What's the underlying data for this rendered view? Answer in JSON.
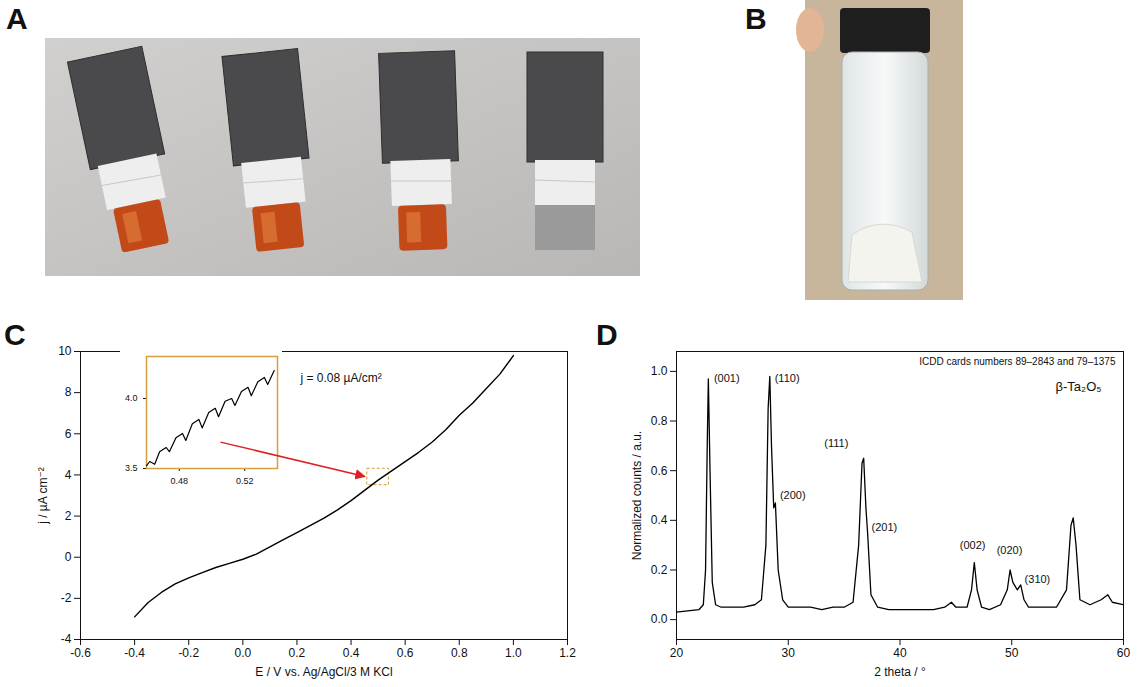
{
  "photo_panels": [
    "A",
    "B"
  ],
  "chart_data": [
    {
      "panel": "C",
      "type": "line",
      "x_label": "E / V vs. Ag/AgCl/3 M KCl",
      "y_label": "j / µA cm⁻²",
      "annotations": [
        "j = 0.08 µA/cm²"
      ],
      "color": "#000000",
      "grid": false,
      "x": [
        -0.4,
        -0.35,
        -0.3,
        -0.25,
        -0.2,
        -0.15,
        -0.1,
        -0.05,
        0,
        0.05,
        0.1,
        0.15,
        0.2,
        0.25,
        0.3,
        0.35,
        0.4,
        0.45,
        0.5,
        0.55,
        0.6,
        0.65,
        0.7,
        0.75,
        0.8,
        0.85,
        0.9,
        0.95,
        1.0
      ],
      "values": [
        -2.9,
        -2.2,
        -1.7,
        -1.3,
        -1.0,
        -0.75,
        -0.5,
        -0.3,
        -0.1,
        0.15,
        0.5,
        0.85,
        1.2,
        1.55,
        1.9,
        2.3,
        2.75,
        3.25,
        3.75,
        4.2,
        4.65,
        5.1,
        5.6,
        6.2,
        6.9,
        7.5,
        8.2,
        8.9,
        9.8
      ],
      "xlim": [
        -0.6,
        1.2
      ],
      "xticks": [
        -0.6,
        -0.4,
        -0.2,
        {
          "value": 0,
          "label": "0.0"
        },
        0.2,
        0.4,
        0.6,
        0.8,
        {
          "value": 1,
          "label": "1.0"
        },
        1.2
      ],
      "ylim": [
        -4,
        10
      ],
      "yticks": [
        -4,
        -2,
        0,
        2,
        4,
        6,
        8,
        10
      ],
      "inset": {
        "type": "line",
        "color": "#000000",
        "x": [
          0.46,
          0.462,
          0.465,
          0.468,
          0.472,
          0.474,
          0.478,
          0.482,
          0.484,
          0.488,
          0.492,
          0.494,
          0.498,
          0.502,
          0.504,
          0.508,
          0.512,
          0.514,
          0.518,
          0.522,
          0.524,
          0.528,
          0.532,
          0.534,
          0.538
        ],
        "values": [
          3.52,
          3.55,
          3.53,
          3.62,
          3.65,
          3.62,
          3.72,
          3.75,
          3.7,
          3.82,
          3.85,
          3.79,
          3.9,
          3.93,
          3.87,
          3.98,
          4.0,
          3.95,
          4.05,
          4.08,
          4.02,
          4.12,
          4.15,
          4.1,
          4.2
        ],
        "xlim": [
          0.46,
          0.54
        ],
        "xticks": [
          0.48,
          0.52
        ],
        "ylim": [
          3.5,
          4.3
        ],
        "yticks": [
          3.5,
          {
            "value": 4,
            "label": "4.0"
          }
        ]
      }
    },
    {
      "panel": "D",
      "type": "line",
      "x_label": "2 theta / °",
      "y_label": "Normalized counts / a.u.",
      "annotations": [
        "ICDD cards numbers 89–2843 and 79–1375",
        "β-Ta₂O₅"
      ],
      "color": "#000000",
      "grid": false,
      "x": [
        20,
        21,
        22,
        22.4,
        22.6,
        22.75,
        22.85,
        23.0,
        23.2,
        23.5,
        24,
        25,
        26,
        27,
        27.6,
        28.0,
        28.2,
        28.35,
        28.5,
        28.7,
        28.85,
        29.1,
        29.5,
        30,
        31,
        32,
        33,
        34,
        35,
        35.8,
        36.3,
        36.6,
        36.75,
        36.95,
        37.1,
        37.4,
        38,
        39,
        40,
        41,
        42,
        43,
        44,
        44.6,
        45,
        46,
        46.4,
        46.65,
        46.9,
        47.3,
        48,
        49,
        49.6,
        49.85,
        50.1,
        50.5,
        50.8,
        51.1,
        51.5,
        52,
        53,
        54,
        54.9,
        55.3,
        55.5,
        55.75,
        56.1,
        57,
        58,
        58.6,
        59,
        60
      ],
      "values": [
        0.03,
        0.035,
        0.04,
        0.06,
        0.2,
        0.7,
        0.97,
        0.6,
        0.15,
        0.06,
        0.05,
        0.05,
        0.05,
        0.06,
        0.08,
        0.3,
        0.85,
        0.98,
        0.7,
        0.45,
        0.47,
        0.2,
        0.08,
        0.05,
        0.05,
        0.05,
        0.04,
        0.05,
        0.05,
        0.07,
        0.3,
        0.63,
        0.65,
        0.45,
        0.35,
        0.1,
        0.05,
        0.04,
        0.04,
        0.04,
        0.04,
        0.04,
        0.05,
        0.07,
        0.05,
        0.05,
        0.12,
        0.23,
        0.12,
        0.05,
        0.04,
        0.06,
        0.12,
        0.2,
        0.15,
        0.12,
        0.14,
        0.08,
        0.05,
        0.05,
        0.05,
        0.05,
        0.12,
        0.38,
        0.41,
        0.3,
        0.08,
        0.06,
        0.08,
        0.1,
        0.07,
        0.06
      ],
      "peak_labels": [
        {
          "text": "(001)",
          "x": 24.5,
          "y": 0.97
        },
        {
          "text": "(110)",
          "x": 29.9,
          "y": 0.97
        },
        {
          "text": "(200)",
          "x": 30.4,
          "y": 0.5
        },
        {
          "text": "(111)",
          "x": 34.3,
          "y": 0.71
        },
        {
          "text": "(201)",
          "x": 38.6,
          "y": 0.37
        },
        {
          "text": "(002)",
          "x": 46.5,
          "y": 0.3
        },
        {
          "text": "(020)",
          "x": 49.8,
          "y": 0.28
        },
        {
          "text": "(310)",
          "x": 52.3,
          "y": 0.16
        }
      ],
      "xlim": [
        20,
        60
      ],
      "xticks": [
        20,
        30,
        40,
        50,
        60
      ],
      "ylim": [
        -0.08,
        1.08
      ],
      "yticks": [
        {
          "value": 0,
          "label": "0.0"
        },
        0.2,
        0.4,
        0.6,
        0.8,
        {
          "value": 1,
          "label": "1.0"
        }
      ]
    }
  ]
}
